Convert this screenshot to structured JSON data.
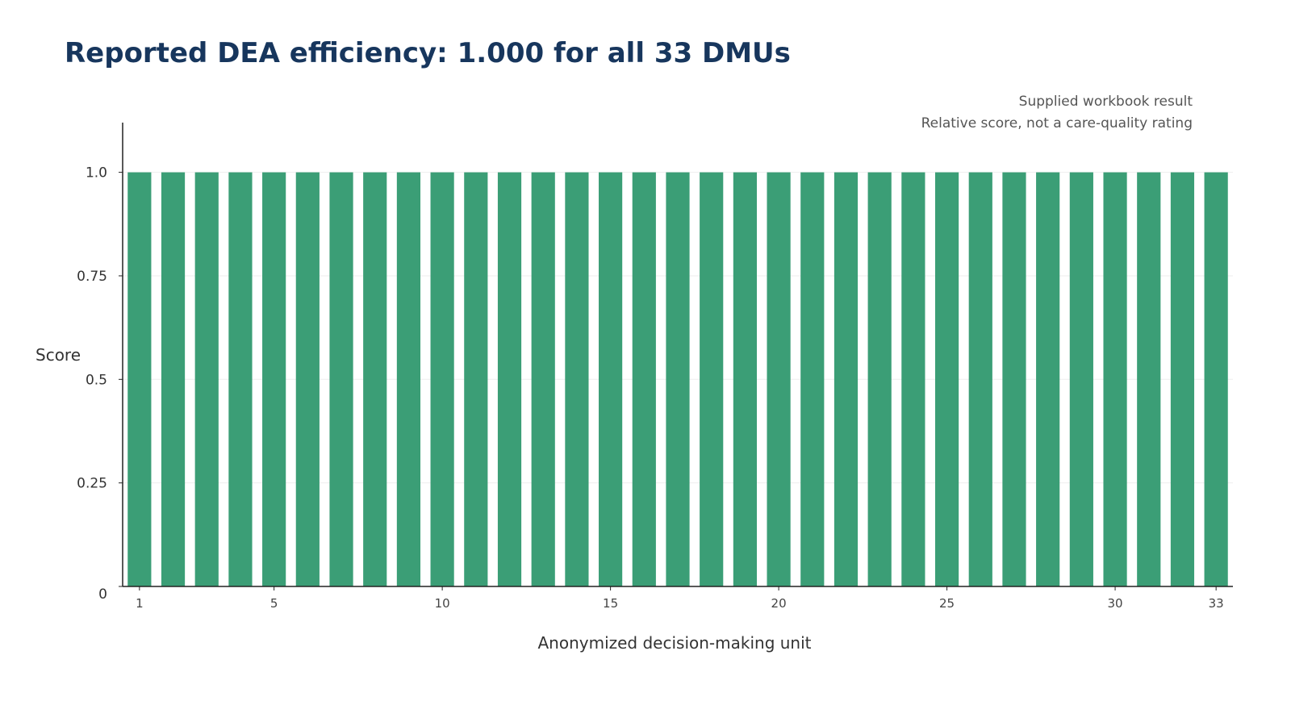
{
  "chart_data": {
    "type": "bar",
    "title": "Reported DEA efficiency: 1.000 for all 33 DMUs",
    "annotations": [
      "Supplied workbook result",
      "Relative score, not a care-quality rating"
    ],
    "xlabel": "Anonymized decision-making unit",
    "ylabel": "Score",
    "categories": [
      1,
      2,
      3,
      4,
      5,
      6,
      7,
      8,
      9,
      10,
      11,
      12,
      13,
      14,
      15,
      16,
      17,
      18,
      19,
      20,
      21,
      22,
      23,
      24,
      25,
      26,
      27,
      28,
      29,
      30,
      31,
      32,
      33
    ],
    "values": [
      1,
      1,
      1,
      1,
      1,
      1,
      1,
      1,
      1,
      1,
      1,
      1,
      1,
      1,
      1,
      1,
      1,
      1,
      1,
      1,
      1,
      1,
      1,
      1,
      1,
      1,
      1,
      1,
      1,
      1,
      1,
      1,
      1
    ],
    "x_ticks": [
      1,
      5,
      10,
      15,
      20,
      25,
      30,
      33
    ],
    "y_ticks": [
      {
        "value": 0,
        "label": "0"
      },
      {
        "value": 0.25,
        "label": "0.25"
      },
      {
        "value": 0.5,
        "label": "0.5"
      },
      {
        "value": 0.75,
        "label": "0.75"
      },
      {
        "value": 1,
        "label": "1.0"
      }
    ],
    "ylim": [
      0,
      1.12
    ],
    "grid": true,
    "colors": {
      "bar": "#3b9e76",
      "title": "#17365d",
      "grid": "#eeeeee",
      "axis": "#222222"
    }
  }
}
